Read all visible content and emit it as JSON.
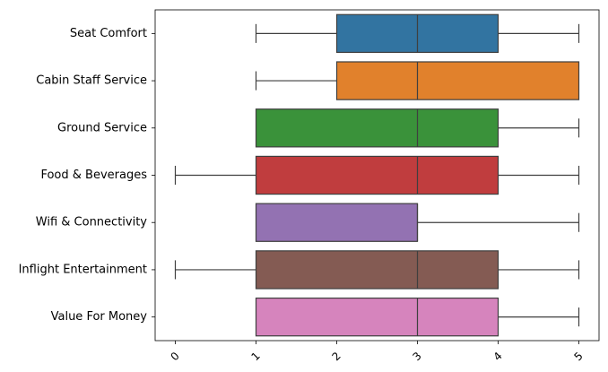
{
  "chart_data": {
    "type": "boxplot",
    "orientation": "horizontal",
    "title": "",
    "xlabel": "",
    "ylabel": "",
    "xlim": [
      -0.25,
      5.25
    ],
    "x_ticks": [
      "0",
      "1",
      "2",
      "3",
      "4",
      "5"
    ],
    "grid": false,
    "legend": false,
    "categories": [
      "Seat Comfort",
      "Cabin Staff Service",
      "Ground Service",
      "Food & Beverages",
      "Wifi & Connectivity",
      "Inflight Entertainment",
      "Value For Money"
    ],
    "boxes": [
      {
        "min": 1,
        "q1": 2,
        "median": 3,
        "q3": 4,
        "max": 5,
        "color": "#3274a1"
      },
      {
        "min": 1,
        "q1": 2,
        "median": 3,
        "q3": 5,
        "max": 5,
        "color": "#e1812c"
      },
      {
        "min": 1,
        "q1": 1,
        "median": 3,
        "q3": 4,
        "max": 5,
        "color": "#3a923a"
      },
      {
        "min": 0,
        "q1": 1,
        "median": 3,
        "q3": 4,
        "max": 5,
        "color": "#c03d3e"
      },
      {
        "min": 1,
        "q1": 1,
        "median": 3,
        "q3": 3,
        "max": 5,
        "color": "#9372b2"
      },
      {
        "min": 0,
        "q1": 1,
        "median": 3,
        "q3": 4,
        "max": 5,
        "color": "#845b53"
      },
      {
        "min": 1,
        "q1": 1,
        "median": 3,
        "q3": 4,
        "max": 5,
        "color": "#d684bd"
      }
    ]
  }
}
